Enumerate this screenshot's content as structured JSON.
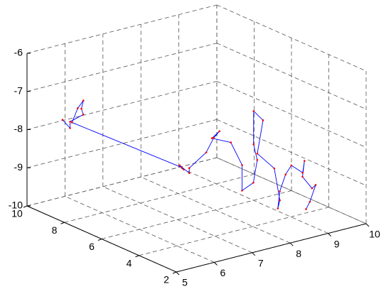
{
  "chart_data": {
    "type": "line3d",
    "xlim": [
      5,
      10
    ],
    "ylim": [
      2,
      10
    ],
    "zlim": [
      -10,
      -6
    ],
    "xticks": [
      5,
      6,
      7,
      8,
      9,
      10
    ],
    "yticks": [
      2,
      4,
      6,
      8,
      10
    ],
    "zticks": [
      -10,
      -9,
      -8,
      -7,
      -6
    ],
    "grid": true,
    "series": [
      {
        "color": "#0000ff",
        "marker_color": "#ff0000",
        "x": [
          5.1,
          5.2,
          5.3,
          5.5,
          5.4,
          5.6,
          5.5,
          5.3,
          7.6,
          7.7,
          7.5,
          7.8,
          7.7,
          8.0,
          8.1,
          8.3,
          8.2,
          8.5,
          8.7,
          8.6,
          8.8,
          9.0,
          9.1,
          9.2,
          9.3,
          9.1,
          9.4,
          9.3,
          9.1,
          9.2,
          9.5,
          9.8,
          10.0,
          9.9,
          9.7,
          10.0,
          9.9,
          9.6,
          9.4
        ],
        "y": [
          8.3,
          8.1,
          8.3,
          8.0,
          7.9,
          8.2,
          8.3,
          8.2,
          7.0,
          7.1,
          6.9,
          7.0,
          6.8,
          6.5,
          6.3,
          6.4,
          6.6,
          6.2,
          6.0,
          5.8,
          5.6,
          5.8,
          6.2,
          6.4,
          6.1,
          6.0,
          5.7,
          5.2,
          4.9,
          5.0,
          5.3,
          5.6,
          5.4,
          5.1,
          4.8,
          4.9,
          4.5,
          4.2,
          4.0
        ],
        "z": [
          -7.4,
          -7.6,
          -7.5,
          -7.3,
          -7.1,
          -7.0,
          -7.2,
          -7.5,
          -9.0,
          -9.1,
          -8.9,
          -9.2,
          -9.0,
          -8.6,
          -8.2,
          -8.1,
          -8.3,
          -8.4,
          -9.0,
          -9.6,
          -9.4,
          -8.9,
          -8.6,
          -7.8,
          -8.0,
          -8.8,
          -9.2,
          -9.9,
          -10.0,
          -9.6,
          -9.3,
          -9.2,
          -9.4,
          -9.0,
          -9.3,
          -9.7,
          -9.5,
          -9.8,
          -9.9
        ]
      }
    ]
  }
}
